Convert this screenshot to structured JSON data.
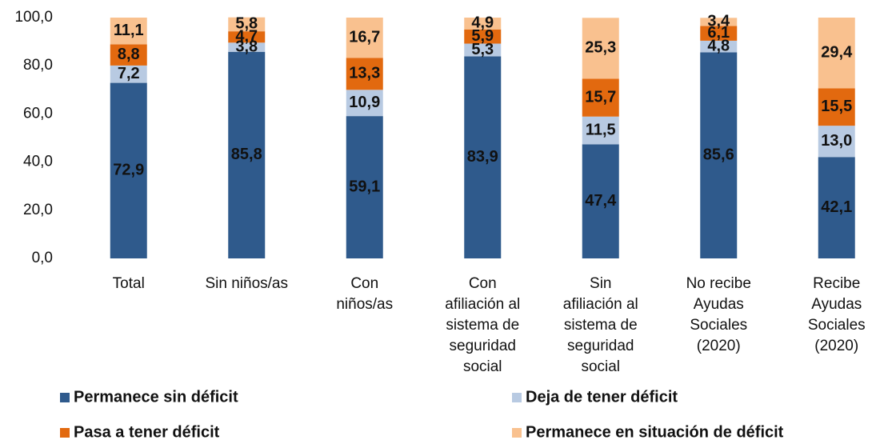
{
  "chart_data": {
    "type": "stacked_bar",
    "categories": [
      "Total",
      "Sin niños/as",
      "Con\nniños/as",
      "Con\nafiliación al\nsistema de\nseguridad\nsocial",
      "Sin\nafiliación al\nsistema de\nseguridad\nsocial",
      "No recibe\nAyudas\nSociales\n(2020)",
      "Recibe\nAyudas\nSociales\n(2020)"
    ],
    "series": [
      {
        "name": "Permanece sin déficit",
        "color": "#2f5a8c",
        "label_color": "#ffffff",
        "values": [
          72.9,
          85.8,
          59.1,
          83.9,
          47.4,
          85.6,
          42.1
        ],
        "value_labels": [
          "72,9",
          "85,8",
          "59,1",
          "83,9",
          "47,4",
          "85,6",
          "42,1"
        ]
      },
      {
        "name": "Deja de tener déficit",
        "color": "#b8cae2",
        "label_color": "#111111",
        "values": [
          7.2,
          3.8,
          10.9,
          5.3,
          11.5,
          4.8,
          13.0
        ],
        "value_labels": [
          "7,2",
          "3,8",
          "10,9",
          "5,3",
          "11,5",
          "4,8",
          "13,0"
        ]
      },
      {
        "name": "Pasa a tener déficit",
        "color": "#e2690f",
        "label_color": "#111111",
        "values": [
          8.8,
          4.7,
          13.3,
          5.9,
          15.7,
          6.1,
          15.5
        ],
        "value_labels": [
          "8,8",
          "4,7",
          "13,3",
          "5,9",
          "15,7",
          "6,1",
          "15,5"
        ]
      },
      {
        "name": "Permanece en situación de déficit",
        "color": "#f9c18f",
        "label_color": "#111111",
        "values": [
          11.1,
          5.8,
          16.7,
          4.9,
          25.3,
          3.4,
          29.4
        ],
        "value_labels": [
          "11,1",
          "5,8",
          "16,7",
          "4,9",
          "25,3",
          "3,4",
          "29,4"
        ]
      }
    ],
    "ylim": [
      0,
      100
    ],
    "yticks": [
      {
        "value": 0,
        "label": "0,0"
      },
      {
        "value": 20,
        "label": "20,0"
      },
      {
        "value": 40,
        "label": "40,0"
      },
      {
        "value": 60,
        "label": "60,0"
      },
      {
        "value": 80,
        "label": "80,0"
      },
      {
        "value": 100,
        "label": "100,0"
      }
    ],
    "legend": "bottom"
  }
}
